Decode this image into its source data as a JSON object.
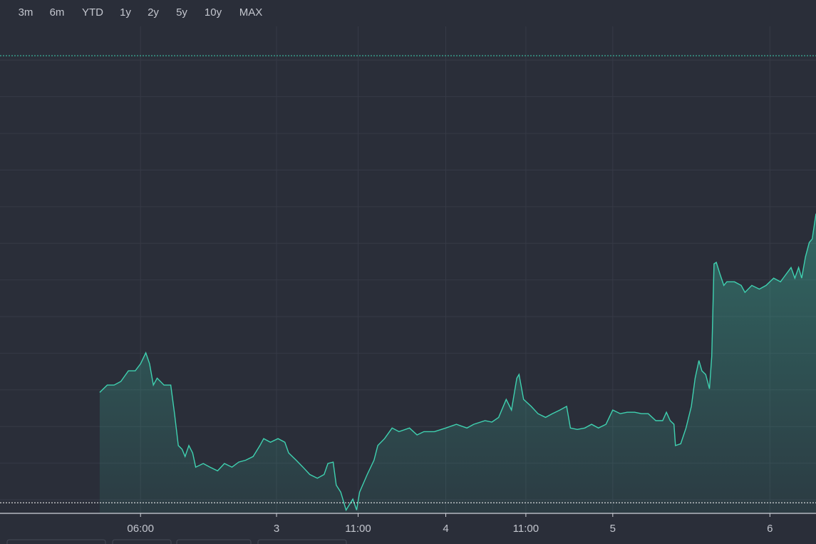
{
  "range_buttons": [
    "3m",
    "6m",
    "YTD",
    "1y",
    "2y",
    "5y",
    "10y",
    "MAX"
  ],
  "chart_data": {
    "type": "area",
    "xlim": [
      0,
      108
    ],
    "ylim": [
      -3.7,
      129.2
    ],
    "xticks": [
      {
        "value": 18.6,
        "label": "06:00"
      },
      {
        "value": 36.6,
        "label": "3"
      },
      {
        "value": 47.4,
        "label": "11:00"
      },
      {
        "value": 59.0,
        "label": "4"
      },
      {
        "value": 69.6,
        "label": "11:00"
      },
      {
        "value": 81.1,
        "label": "5"
      },
      {
        "value": 101.9,
        "label": "6"
      }
    ],
    "yticks": [
      0,
      10,
      20,
      30,
      40,
      50,
      60,
      70,
      80,
      90,
      100,
      110,
      120
    ],
    "grid": true,
    "color": "#3fd1b0",
    "reference_lines": [
      {
        "value": 121.2,
        "color": "#3fd1b0"
      },
      {
        "value": -0.8,
        "color": "#ffffff"
      }
    ],
    "x": [
      13.2,
      14.2,
      15.1,
      16.0,
      17.0,
      17.9,
      18.6,
      19.3,
      19.8,
      20.3,
      20.8,
      21.7,
      22.6,
      23.1,
      23.6,
      24.1,
      24.5,
      25.0,
      25.5,
      25.9,
      26.9,
      27.8,
      28.8,
      29.7,
      30.7,
      31.6,
      32.5,
      33.5,
      34.4,
      34.9,
      35.8,
      36.8,
      37.7,
      38.2,
      39.2,
      40.1,
      41.0,
      42.0,
      42.9,
      43.4,
      44.1,
      44.5,
      45.1,
      45.8,
      46.7,
      47.2,
      47.6,
      48.6,
      49.5,
      50.0,
      50.9,
      51.9,
      52.8,
      54.2,
      55.2,
      56.1,
      57.5,
      59.0,
      60.4,
      61.8,
      62.7,
      64.2,
      65.1,
      66.0,
      67.0,
      67.7,
      68.4,
      68.7,
      69.3,
      70.3,
      71.2,
      72.2,
      73.1,
      74.1,
      75.0,
      75.5,
      76.4,
      77.4,
      78.3,
      79.2,
      80.2,
      81.1,
      82.1,
      83.0,
      84.0,
      84.9,
      85.8,
      86.8,
      87.7,
      88.2,
      88.7,
      89.2,
      89.4,
      90.1,
      90.8,
      91.5,
      92.0,
      92.5,
      92.9,
      93.4,
      93.9,
      94.2,
      94.5,
      94.8,
      95.3,
      95.8,
      96.2,
      97.2,
      98.1,
      98.6,
      99.5,
      100.5,
      101.4,
      102.4,
      103.3,
      103.8,
      104.7,
      105.2,
      105.7,
      106.1,
      106.6,
      107.1,
      107.5,
      108.0
    ],
    "values": [
      29.3,
      31.3,
      31.3,
      32.3,
      35.2,
      35.2,
      37.1,
      40.1,
      37.1,
      31.3,
      33.2,
      31.3,
      31.3,
      23.5,
      14.8,
      13.8,
      11.8,
      14.8,
      12.8,
      8.9,
      9.9,
      8.9,
      7.9,
      9.9,
      8.9,
      10.3,
      10.8,
      11.8,
      14.8,
      16.7,
      15.7,
      16.7,
      15.7,
      12.8,
      10.8,
      8.9,
      6.9,
      5.9,
      6.9,
      9.9,
      10.3,
      4.0,
      2.1,
      -2.8,
      0.2,
      -2.8,
      2.1,
      6.9,
      10.8,
      14.8,
      16.7,
      19.6,
      18.6,
      19.6,
      17.7,
      18.6,
      18.6,
      19.6,
      20.6,
      19.6,
      20.6,
      21.6,
      21.2,
      22.5,
      27.4,
      24.5,
      33.2,
      34.2,
      27.4,
      25.5,
      23.5,
      22.5,
      23.5,
      24.5,
      25.5,
      19.6,
      19.2,
      19.6,
      20.6,
      19.6,
      20.6,
      24.5,
      23.5,
      23.9,
      23.9,
      23.5,
      23.5,
      21.6,
      21.6,
      23.9,
      21.6,
      20.6,
      14.8,
      15.3,
      19.6,
      25.5,
      33.2,
      38.0,
      35.2,
      34.2,
      30.3,
      39.1,
      64.4,
      64.8,
      61.5,
      58.5,
      59.5,
      59.5,
      58.5,
      56.6,
      58.5,
      57.5,
      58.5,
      60.5,
      59.5,
      60.9,
      63.4,
      60.5,
      63.4,
      60.5,
      66.3,
      70.2,
      71.2,
      78.1
    ]
  }
}
